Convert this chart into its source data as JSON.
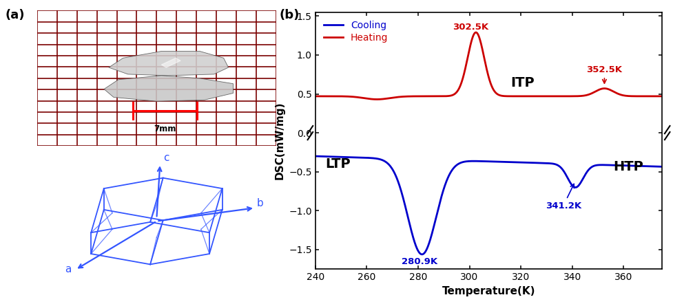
{
  "title_a": "(a)",
  "title_b": "(b)",
  "xlabel": "Temperature(K)",
  "ylabel": "DSC(mW/mg)",
  "xlim": [
    240,
    375
  ],
  "ylim": [
    -1.75,
    1.55
  ],
  "xticks": [
    240,
    260,
    280,
    300,
    320,
    340,
    360
  ],
  "yticks": [
    -1.5,
    -1.0,
    -0.5,
    0.0,
    0.5,
    1.0,
    1.5
  ],
  "cooling_color": "#0000cc",
  "heating_color": "#cc0000",
  "cooling_label": "Cooling",
  "heating_label": "Heating",
  "peak_heating_label": "302.5K",
  "peak2_heating_label": "352.5K",
  "peak_cooling_label": "280.9K",
  "peak2_cooling_label": "341.2K",
  "label_LTP": "LTP",
  "label_ITP": "ITP",
  "label_HTP": "HTP",
  "grid_color": "#7a0000",
  "grid_bg": "#7ec8c8",
  "crystal_blue": "#3355ff",
  "background_color": "#ffffff"
}
